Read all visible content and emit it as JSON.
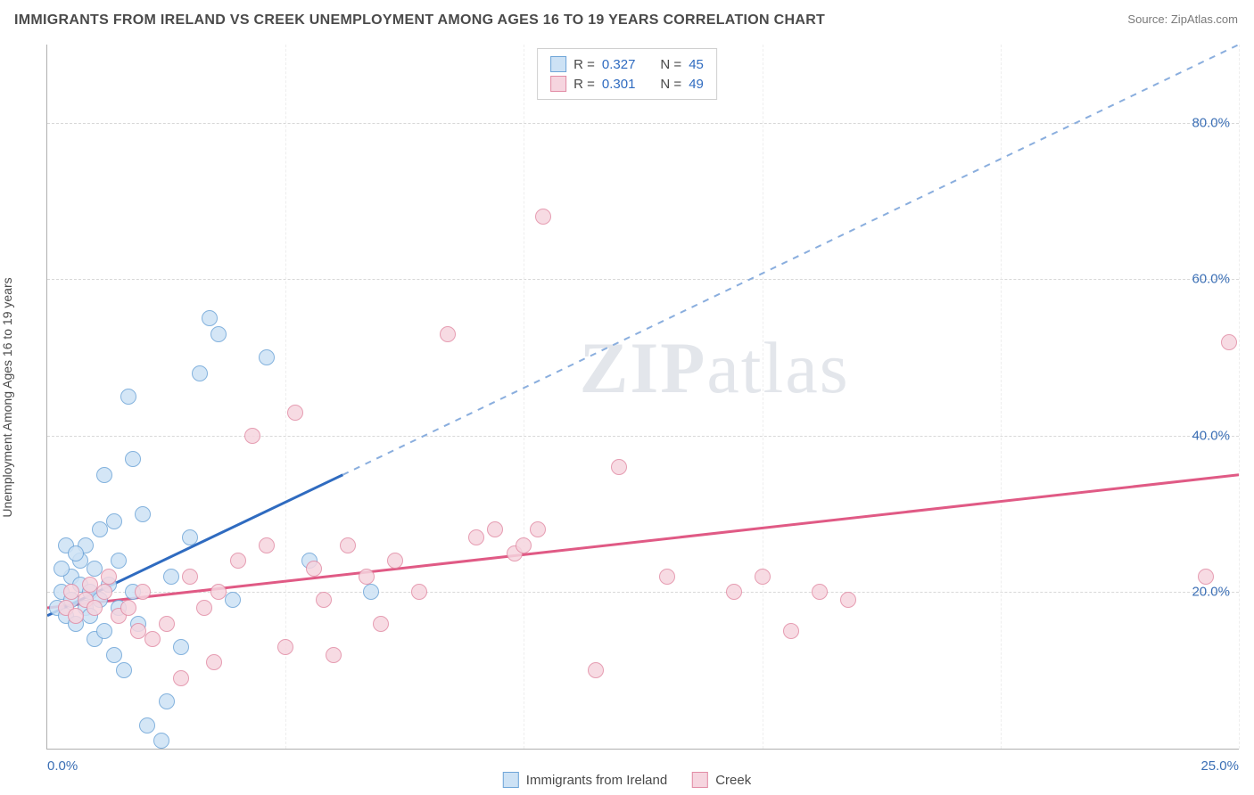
{
  "title": "IMMIGRANTS FROM IRELAND VS CREEK UNEMPLOYMENT AMONG AGES 16 TO 19 YEARS CORRELATION CHART",
  "source_label": "Source:",
  "source_value": "ZipAtlas.com",
  "watermark_a": "ZIP",
  "watermark_b": "atlas",
  "ylabel": "Unemployment Among Ages 16 to 19 years",
  "chart": {
    "type": "scatter",
    "xlim": [
      0,
      25
    ],
    "ylim": [
      0,
      90
    ],
    "xtick_labels": [
      "0.0%",
      "25.0%"
    ],
    "xtick_positions": [
      0,
      25
    ],
    "ytick_labels": [
      "20.0%",
      "40.0%",
      "60.0%",
      "80.0%"
    ],
    "ytick_positions": [
      20,
      40,
      60,
      80
    ],
    "vgrid_positions": [
      5,
      10,
      15,
      20,
      25
    ],
    "background_color": "#ffffff",
    "grid_color": "#d8d8d8",
    "label_color": "#3b6fb5"
  },
  "series": [
    {
      "key": "ireland",
      "label": "Immigrants from Ireland",
      "marker_fill": "#cde2f5",
      "marker_stroke": "#6ea5d8",
      "line_color": "#2f6bc0",
      "line_width": 3,
      "dash_color": "#8aaede",
      "r": "0.327",
      "n": "45",
      "trend": {
        "x1": 0,
        "y1": 17,
        "x2": 6.2,
        "y2": 35,
        "dash_x2": 25,
        "dash_y2": 90
      },
      "points": [
        [
          0.2,
          18
        ],
        [
          0.3,
          20
        ],
        [
          0.4,
          17
        ],
        [
          0.5,
          22
        ],
        [
          0.5,
          19
        ],
        [
          0.6,
          16
        ],
        [
          0.7,
          21
        ],
        [
          0.7,
          24
        ],
        [
          0.8,
          18
        ],
        [
          0.8,
          26
        ],
        [
          0.9,
          20
        ],
        [
          1.0,
          14
        ],
        [
          1.0,
          23
        ],
        [
          1.1,
          19
        ],
        [
          1.1,
          28
        ],
        [
          1.2,
          15
        ],
        [
          1.2,
          35
        ],
        [
          1.3,
          21
        ],
        [
          1.4,
          12
        ],
        [
          1.5,
          18
        ],
        [
          1.5,
          24
        ],
        [
          1.6,
          10
        ],
        [
          1.7,
          45
        ],
        [
          1.8,
          20
        ],
        [
          1.8,
          37
        ],
        [
          1.9,
          16
        ],
        [
          2.0,
          30
        ],
        [
          2.1,
          3
        ],
        [
          2.4,
          1
        ],
        [
          2.5,
          6
        ],
        [
          2.6,
          22
        ],
        [
          2.8,
          13
        ],
        [
          3.0,
          27
        ],
        [
          3.2,
          48
        ],
        [
          3.4,
          55
        ],
        [
          3.6,
          53
        ],
        [
          3.9,
          19
        ],
        [
          4.6,
          50
        ],
        [
          5.5,
          24
        ],
        [
          6.8,
          20
        ],
        [
          0.3,
          23
        ],
        [
          0.4,
          26
        ],
        [
          0.6,
          25
        ],
        [
          0.9,
          17
        ],
        [
          1.4,
          29
        ]
      ]
    },
    {
      "key": "creek",
      "label": "Creek",
      "marker_fill": "#f6d5df",
      "marker_stroke": "#e28ca5",
      "line_color": "#e05a85",
      "line_width": 3,
      "r": "0.301",
      "n": "49",
      "trend": {
        "x1": 0,
        "y1": 18,
        "x2": 25,
        "y2": 35
      },
      "points": [
        [
          0.4,
          18
        ],
        [
          0.5,
          20
        ],
        [
          0.6,
          17
        ],
        [
          0.8,
          19
        ],
        [
          0.9,
          21
        ],
        [
          1.0,
          18
        ],
        [
          1.2,
          20
        ],
        [
          1.3,
          22
        ],
        [
          1.5,
          17
        ],
        [
          1.7,
          18
        ],
        [
          1.9,
          15
        ],
        [
          2.0,
          20
        ],
        [
          2.2,
          14
        ],
        [
          2.5,
          16
        ],
        [
          2.8,
          9
        ],
        [
          3.0,
          22
        ],
        [
          3.3,
          18
        ],
        [
          3.6,
          20
        ],
        [
          4.0,
          24
        ],
        [
          4.3,
          40
        ],
        [
          4.6,
          26
        ],
        [
          5.0,
          13
        ],
        [
          5.2,
          43
        ],
        [
          5.6,
          23
        ],
        [
          5.8,
          19
        ],
        [
          6.0,
          12
        ],
        [
          6.3,
          26
        ],
        [
          6.7,
          22
        ],
        [
          7.0,
          16
        ],
        [
          7.3,
          24
        ],
        [
          7.8,
          20
        ],
        [
          8.4,
          53
        ],
        [
          9.0,
          27
        ],
        [
          9.4,
          28
        ],
        [
          9.8,
          25
        ],
        [
          10.0,
          26
        ],
        [
          10.3,
          28
        ],
        [
          10.4,
          68
        ],
        [
          11.5,
          10
        ],
        [
          12.0,
          36
        ],
        [
          13.0,
          22
        ],
        [
          14.4,
          20
        ],
        [
          15.0,
          22
        ],
        [
          15.6,
          15
        ],
        [
          16.2,
          20
        ],
        [
          16.8,
          19
        ],
        [
          24.3,
          22
        ],
        [
          24.8,
          52
        ],
        [
          3.5,
          11
        ]
      ]
    }
  ],
  "legend_top": {
    "r_label": "R =",
    "n_label": "N ="
  }
}
